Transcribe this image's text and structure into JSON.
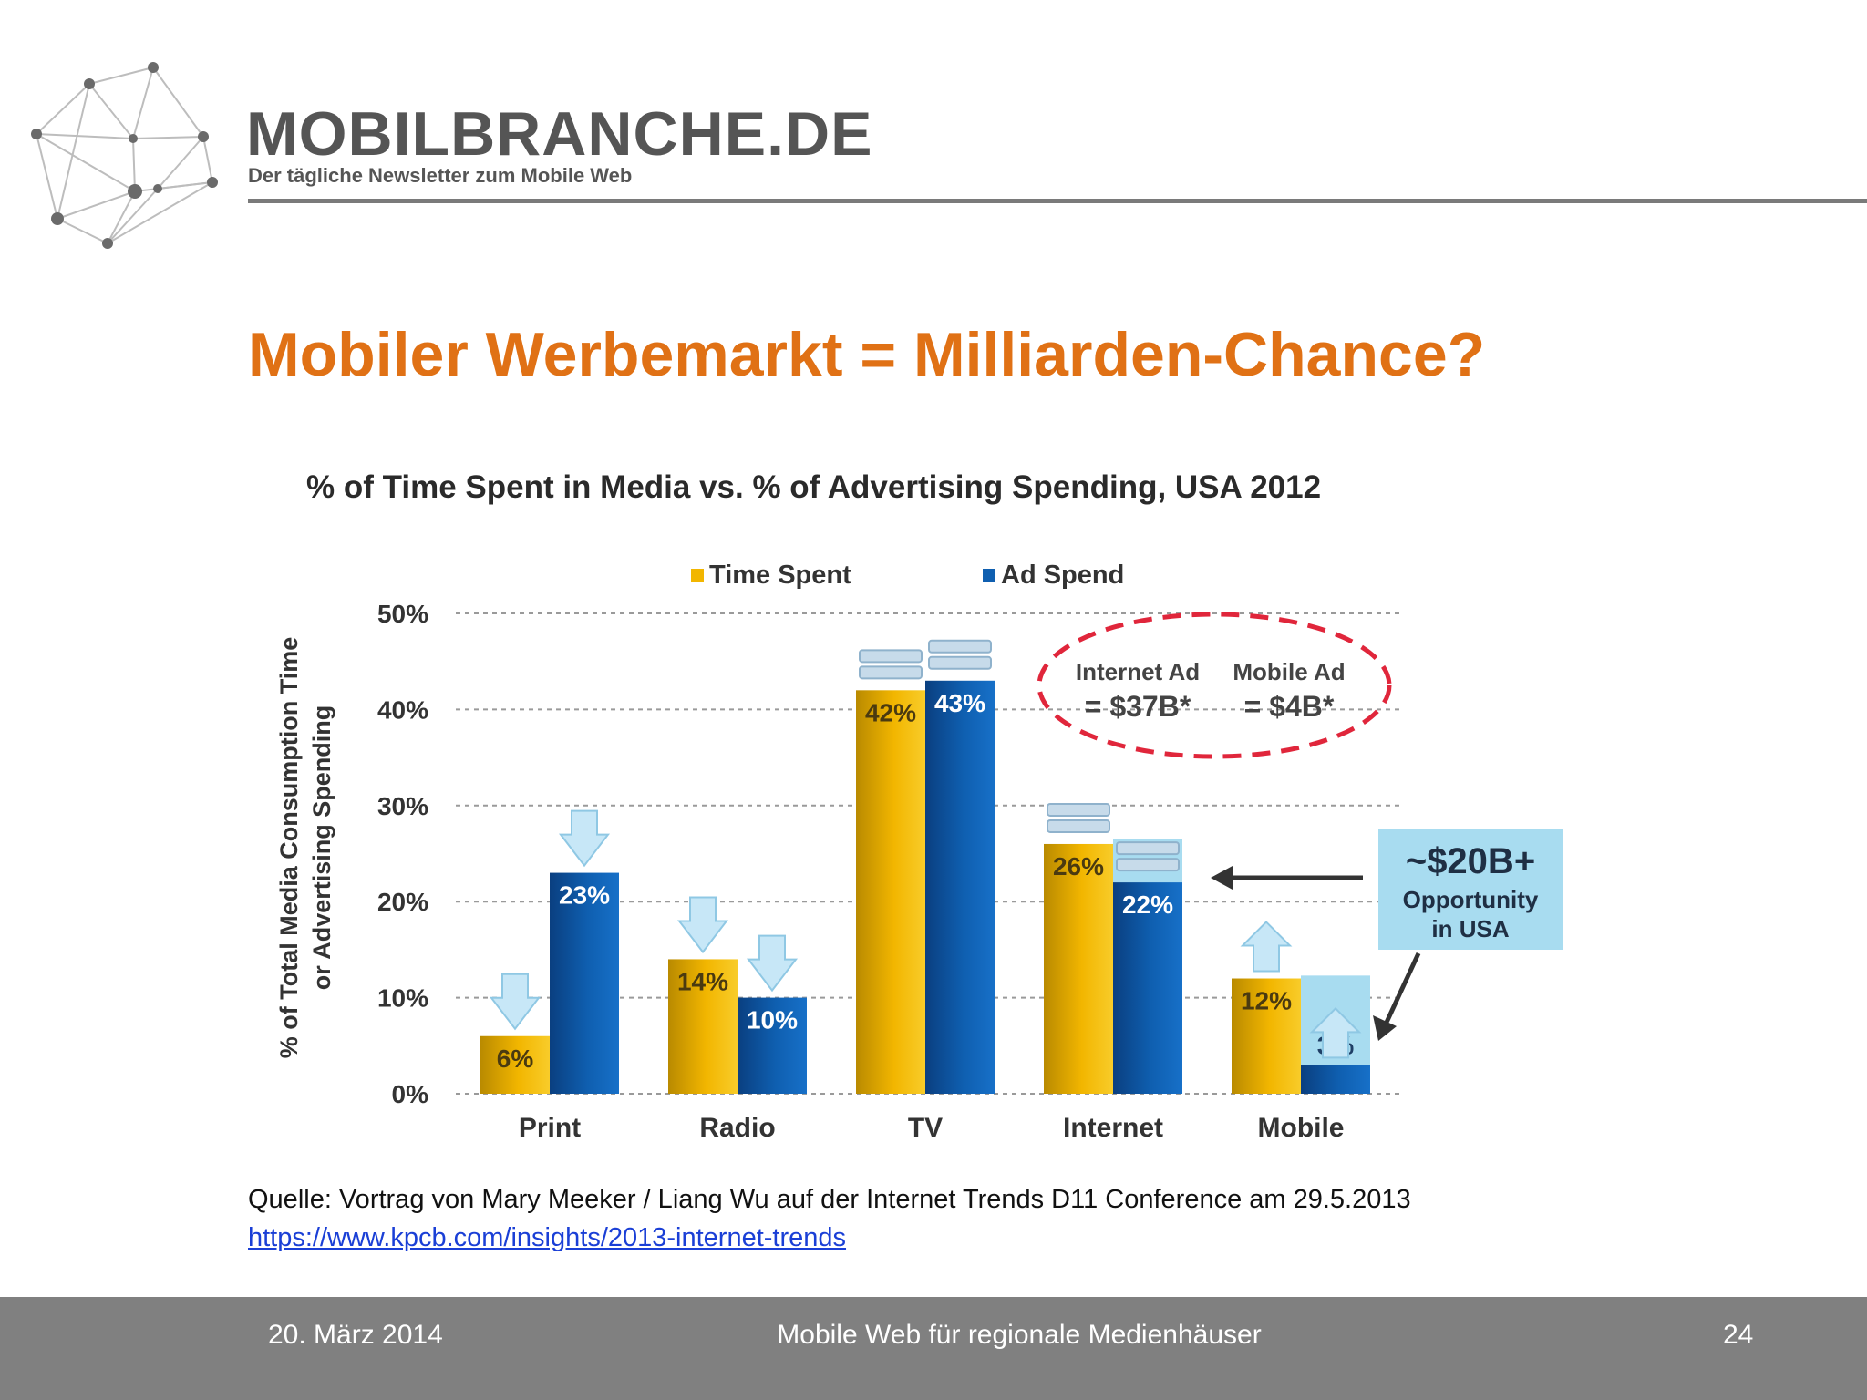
{
  "header": {
    "brand_name": "MOBILBRANCHE.DE",
    "tagline": "Der tägliche Newsletter zum Mobile Web"
  },
  "slide": {
    "title": "Mobiler Werbemarkt = Milliarden-Chance?"
  },
  "colors": {
    "title_orange": "#e07115",
    "time_spent": "#f2b600",
    "ad_spend": "#0f5fb0",
    "callout_bg": "#a8dcf0",
    "dashed_ellipse": "#e0263b",
    "footer_bg": "#808080"
  },
  "chart_data": {
    "type": "bar",
    "title": "% of Time Spent in Media vs. % of Advertising Spending, USA 2012",
    "ylabel_line1": "% of Total Media Consumption Time",
    "ylabel_line2": "or Advertising Spending",
    "categories": [
      "Print",
      "Radio",
      "TV",
      "Internet",
      "Mobile"
    ],
    "series": [
      {
        "name": "Time Spent",
        "values": [
          6,
          14,
          42,
          26,
          12
        ],
        "labels": [
          "6%",
          "14%",
          "42%",
          "26%",
          "12%"
        ]
      },
      {
        "name": "Ad Spend",
        "values": [
          23,
          10,
          43,
          22,
          3
        ],
        "labels": [
          "23%",
          "10%",
          "43%",
          "22%",
          "3%"
        ]
      }
    ],
    "ylim": [
      0,
      50
    ],
    "yticks": [
      0,
      10,
      20,
      30,
      40,
      50
    ],
    "ytick_labels": [
      "0%",
      "10%",
      "20%",
      "30%",
      "40%",
      "50%"
    ],
    "grid": true,
    "legend_position": "top",
    "trend_markers": {
      "Print": [
        "down",
        "down"
      ],
      "Radio": [
        "down",
        "down"
      ],
      "TV": [
        "flat",
        "flat"
      ],
      "Internet": [
        "flat",
        "flat"
      ],
      "Mobile": [
        "up",
        "up"
      ]
    },
    "annotations": {
      "internet_ad_line1": "Internet Ad",
      "internet_ad_line2": "= $37B*",
      "mobile_ad_line1": "Mobile Ad",
      "mobile_ad_line2": "= $4B*",
      "opportunity_big": "~$20B+",
      "opportunity_line1": "Opportunity",
      "opportunity_line2": "in USA"
    }
  },
  "source": {
    "text": "Quelle: Vortrag von Mary Meeker / Liang Wu auf der Internet Trends D11 Conference am 29.5.2013",
    "link": "https://www.kpcb.com/insights/2013-internet-trends"
  },
  "footer": {
    "date": "20. März 2014",
    "center": "Mobile Web für regionale Medienhäuser",
    "page": "24"
  }
}
